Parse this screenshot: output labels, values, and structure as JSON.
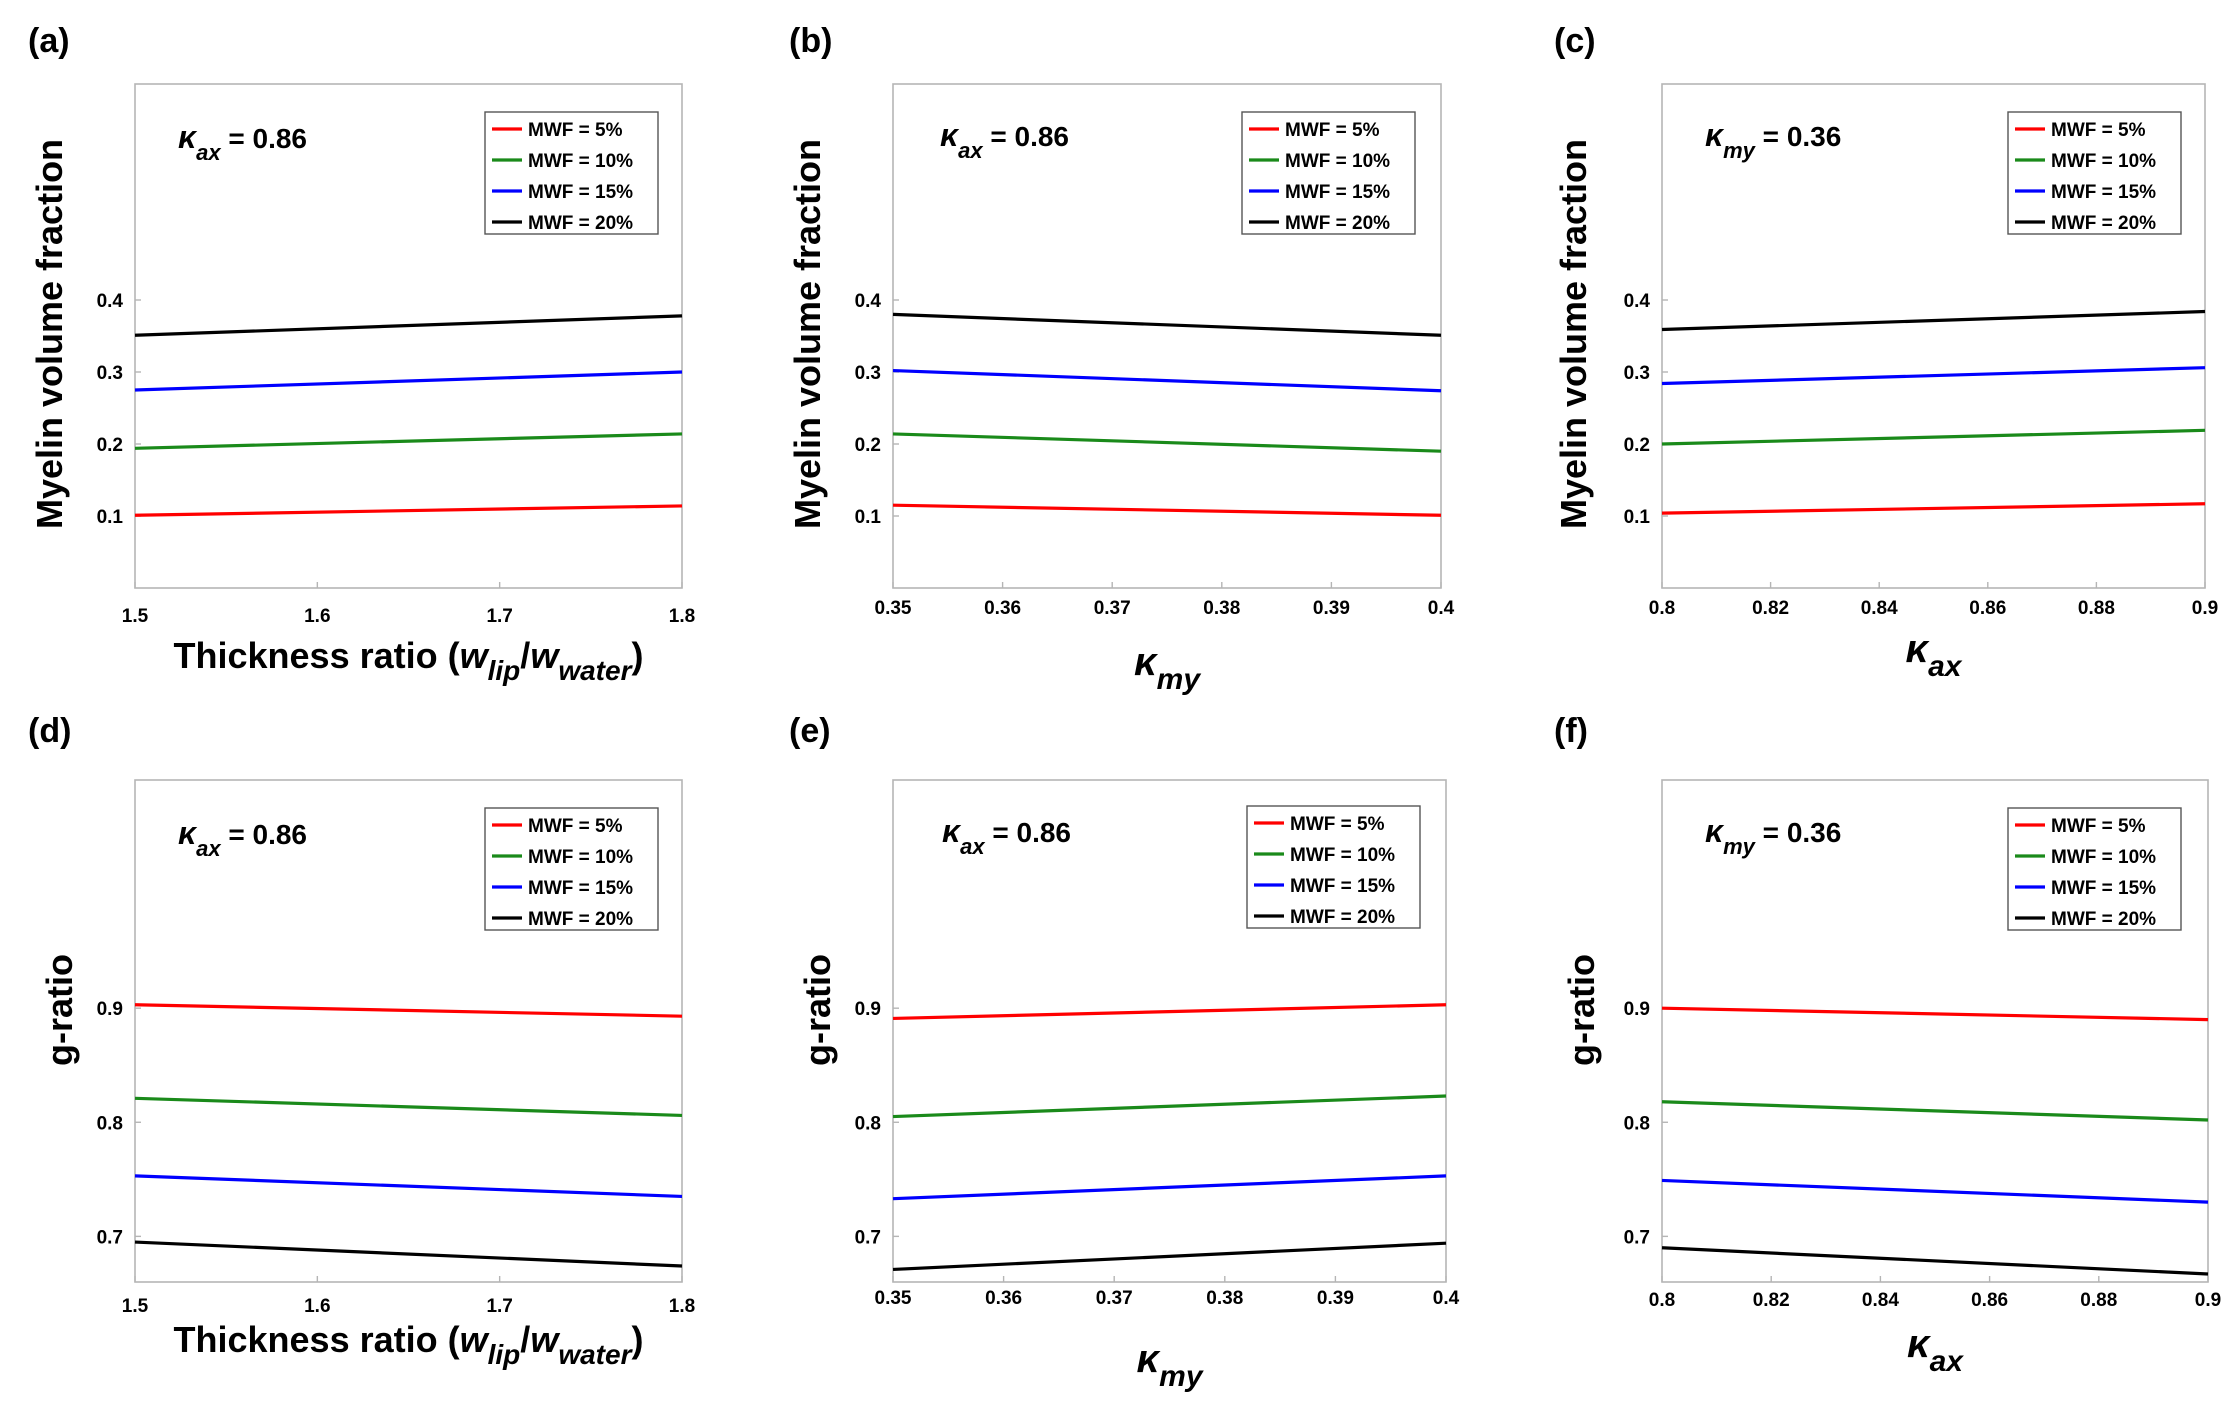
{
  "colors": {
    "MWF = 5%": "#ff0000",
    "MWF = 10%": "#1a8a1a",
    "MWF = 15%": "#0000ff",
    "MWF = 20%": "#000000"
  },
  "legend": [
    "MWF = 5%",
    "MWF = 10%",
    "MWF = 15%",
    "MWF = 20%"
  ],
  "chart_data": [
    {
      "type": "line",
      "panel": "(a)",
      "xlabel": {
        "main": "Thickness ratio (",
        "sub1": "lip",
        "sep": "/",
        "sub2": "water",
        "end": ")",
        "var": "w"
      },
      "ylabel": "Myelin volume fraction",
      "annotation": {
        "symbol": "κ",
        "sub": "ax",
        "text": " = 0.86"
      },
      "xlim": [
        1.5,
        1.8
      ],
      "ylim": [
        0,
        0.7
      ],
      "xticks": [
        1.5,
        1.6,
        1.7,
        1.8
      ],
      "xtick_labels": [
        "1.5",
        "1.6",
        "1.7",
        "1.8"
      ],
      "yticks": [
        0.1,
        0.2,
        0.3,
        0.4
      ],
      "ytick_labels": [
        "0.1",
        "0.2",
        "0.3",
        "0.4"
      ],
      "x": [
        1.5,
        1.8
      ],
      "series": [
        {
          "name": "MWF = 5%",
          "values": [
            0.101,
            0.114
          ]
        },
        {
          "name": "MWF = 10%",
          "values": [
            0.194,
            0.214
          ]
        },
        {
          "name": "MWF = 15%",
          "values": [
            0.275,
            0.3
          ]
        },
        {
          "name": "MWF = 20%",
          "values": [
            0.351,
            0.378
          ]
        }
      ]
    },
    {
      "type": "line",
      "panel": "(b)",
      "xlabel": {
        "symbol": "κ",
        "sub": "my"
      },
      "ylabel": "Myelin volume fraction",
      "annotation": {
        "symbol": "κ",
        "sub": "ax",
        "text": " = 0.86"
      },
      "xlim": [
        0.35,
        0.4
      ],
      "ylim": [
        0,
        0.7
      ],
      "xticks": [
        0.35,
        0.36,
        0.37,
        0.38,
        0.39,
        0.4
      ],
      "xtick_labels": [
        "0.35",
        "0.36",
        "0.37",
        "0.38",
        "0.39",
        "0.4"
      ],
      "yticks": [
        0.1,
        0.2,
        0.3,
        0.4
      ],
      "ytick_labels": [
        "0.1",
        "0.2",
        "0.3",
        "0.4"
      ],
      "x": [
        0.35,
        0.4
      ],
      "series": [
        {
          "name": "MWF = 5%",
          "values": [
            0.115,
            0.101
          ]
        },
        {
          "name": "MWF = 10%",
          "values": [
            0.214,
            0.19
          ]
        },
        {
          "name": "MWF = 15%",
          "values": [
            0.302,
            0.274
          ]
        },
        {
          "name": "MWF = 20%",
          "values": [
            0.38,
            0.351
          ]
        }
      ]
    },
    {
      "type": "line",
      "panel": "(c)",
      "xlabel": {
        "symbol": "κ",
        "sub": "ax"
      },
      "ylabel": "Myelin volume fraction",
      "annotation": {
        "symbol": "κ",
        "sub": "my",
        "text": " = 0.36"
      },
      "xlim": [
        0.8,
        0.9
      ],
      "ylim": [
        0,
        0.7
      ],
      "xticks": [
        0.8,
        0.82,
        0.84,
        0.86,
        0.88,
        0.9
      ],
      "xtick_labels": [
        "0.8",
        "0.82",
        "0.84",
        "0.86",
        "0.88",
        "0.9"
      ],
      "yticks": [
        0.1,
        0.2,
        0.3,
        0.4
      ],
      "ytick_labels": [
        "0.1",
        "0.2",
        "0.3",
        "0.4"
      ],
      "x": [
        0.8,
        0.9
      ],
      "series": [
        {
          "name": "MWF = 5%",
          "values": [
            0.104,
            0.117
          ]
        },
        {
          "name": "MWF = 10%",
          "values": [
            0.2,
            0.219
          ]
        },
        {
          "name": "MWF = 15%",
          "values": [
            0.284,
            0.306
          ]
        },
        {
          "name": "MWF = 20%",
          "values": [
            0.359,
            0.384
          ]
        }
      ]
    },
    {
      "type": "line",
      "panel": "(d)",
      "xlabel": {
        "main": "Thickness ratio (",
        "sub1": "lip",
        "sep": "/",
        "sub2": "water",
        "end": ")",
        "var": "w"
      },
      "ylabel": "g-ratio",
      "annotation": {
        "symbol": "κ",
        "sub": "ax",
        "text": " = 0.86"
      },
      "xlim": [
        1.5,
        1.8
      ],
      "ylim": [
        0.66,
        1.1
      ],
      "xticks": [
        1.5,
        1.6,
        1.7,
        1.8
      ],
      "xtick_labels": [
        "1.5",
        "1.6",
        "1.7",
        "1.8"
      ],
      "yticks": [
        0.7,
        0.8,
        0.9
      ],
      "ytick_labels": [
        "0.7",
        "0.8",
        "0.9"
      ],
      "x": [
        1.5,
        1.8
      ],
      "series": [
        {
          "name": "MWF = 5%",
          "values": [
            0.903,
            0.893
          ]
        },
        {
          "name": "MWF = 10%",
          "values": [
            0.821,
            0.806
          ]
        },
        {
          "name": "MWF = 15%",
          "values": [
            0.753,
            0.735
          ]
        },
        {
          "name": "MWF = 20%",
          "values": [
            0.695,
            0.674
          ]
        }
      ]
    },
    {
      "type": "line",
      "panel": "(e)",
      "xlabel": {
        "symbol": "κ",
        "sub": "my"
      },
      "ylabel": "g-ratio",
      "annotation": {
        "symbol": "κ",
        "sub": "ax",
        "text": " = 0.86"
      },
      "xlim": [
        0.35,
        0.4
      ],
      "ylim": [
        0.66,
        1.1
      ],
      "xticks": [
        0.35,
        0.36,
        0.37,
        0.38,
        0.39,
        0.4
      ],
      "xtick_labels": [
        "0.35",
        "0.36",
        "0.37",
        "0.38",
        "0.39",
        "0.4"
      ],
      "yticks": [
        0.7,
        0.8,
        0.9
      ],
      "ytick_labels": [
        "0.7",
        "0.8",
        "0.9"
      ],
      "x": [
        0.35,
        0.4
      ],
      "series": [
        {
          "name": "MWF = 5%",
          "values": [
            0.891,
            0.903
          ]
        },
        {
          "name": "MWF = 10%",
          "values": [
            0.805,
            0.823
          ]
        },
        {
          "name": "MWF = 15%",
          "values": [
            0.733,
            0.753
          ]
        },
        {
          "name": "MWF = 20%",
          "values": [
            0.671,
            0.694
          ]
        }
      ]
    },
    {
      "type": "line",
      "panel": "(f)",
      "xlabel": {
        "symbol": "κ",
        "sub": "ax"
      },
      "ylabel": "g-ratio",
      "annotation": {
        "symbol": "κ",
        "sub": "my",
        "text": " = 0.36"
      },
      "xlim": [
        0.8,
        0.9
      ],
      "ylim": [
        0.66,
        1.1
      ],
      "xticks": [
        0.8,
        0.82,
        0.84,
        0.86,
        0.88,
        0.9
      ],
      "xtick_labels": [
        "0.8",
        "0.82",
        "0.84",
        "0.86",
        "0.88",
        "0.9"
      ],
      "yticks": [
        0.7,
        0.8,
        0.9
      ],
      "ytick_labels": [
        "0.7",
        "0.8",
        "0.9"
      ],
      "x": [
        0.8,
        0.9
      ],
      "series": [
        {
          "name": "MWF = 5%",
          "values": [
            0.9,
            0.89
          ]
        },
        {
          "name": "MWF = 10%",
          "values": [
            0.818,
            0.802
          ]
        },
        {
          "name": "MWF = 15%",
          "values": [
            0.749,
            0.73
          ]
        },
        {
          "name": "MWF = 20%",
          "values": [
            0.69,
            0.667
          ]
        }
      ]
    }
  ]
}
